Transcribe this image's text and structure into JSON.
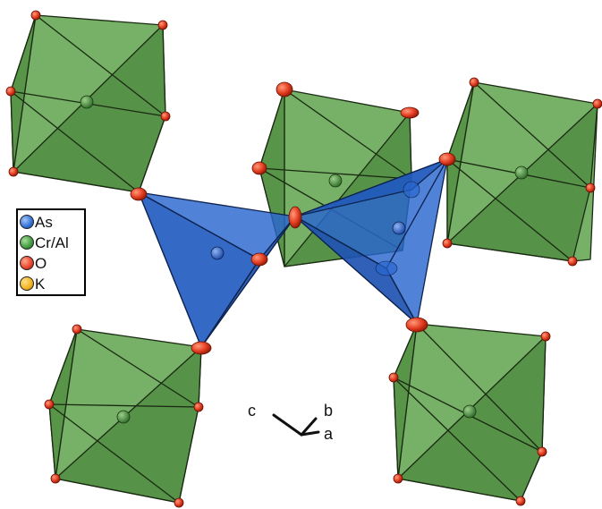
{
  "legend": {
    "items": [
      {
        "label": "As",
        "color": "#2f6fd6"
      },
      {
        "label": "Cr/Al",
        "color": "#3f9a3f"
      },
      {
        "label": "O",
        "color": "#e8402a"
      },
      {
        "label": "K",
        "color": "#f0b21e"
      }
    ]
  },
  "axes": {
    "c": "c",
    "b": "b",
    "a": "a"
  },
  "colors": {
    "octahedron_light": "#5da04a",
    "octahedron_dark": "#3f7a34",
    "tetrahedron": "#2a66d0",
    "oxygen": "#e23b1f",
    "edge": "#1a2a12"
  }
}
